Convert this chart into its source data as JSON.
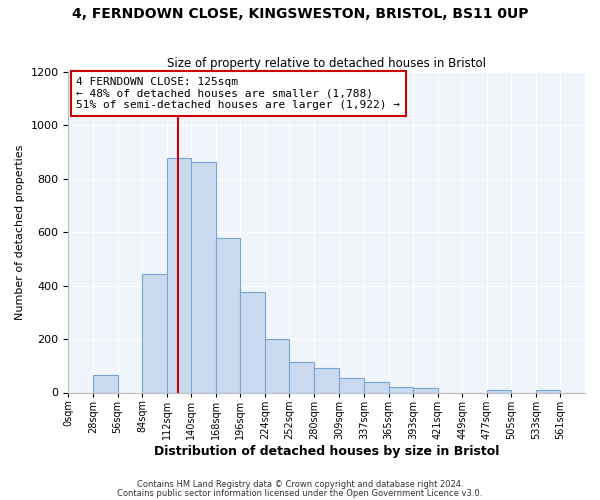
{
  "title1": "4, FERNDOWN CLOSE, KINGSWESTON, BRISTOL, BS11 0UP",
  "title2": "Size of property relative to detached houses in Bristol",
  "xlabel": "Distribution of detached houses by size in Bristol",
  "ylabel": "Number of detached properties",
  "bar_left_edges": [
    0,
    28,
    56,
    84,
    112,
    140,
    168,
    196,
    224,
    252,
    280,
    309,
    337,
    365,
    393,
    421,
    449,
    477,
    505,
    533
  ],
  "bar_widths": [
    28,
    28,
    28,
    28,
    28,
    28,
    28,
    28,
    28,
    28,
    29,
    28,
    28,
    28,
    28,
    28,
    28,
    28,
    28,
    28
  ],
  "bar_heights": [
    0,
    65,
    0,
    445,
    880,
    865,
    580,
    375,
    200,
    115,
    90,
    55,
    40,
    20,
    15,
    0,
    0,
    10,
    0,
    10
  ],
  "bar_color": "#c9d9f0",
  "bar_edge_color": "#7aa4d1",
  "property_line_x": 125,
  "property_line_color": "#cc0000",
  "annotation_title": "4 FERNDOWN CLOSE: 125sqm",
  "annotation_line1": "← 48% of detached houses are smaller (1,788)",
  "annotation_line2": "51% of semi-detached houses are larger (1,922) →",
  "annotation_box_color": "#cc0000",
  "ylim": [
    0,
    1200
  ],
  "yticks": [
    0,
    200,
    400,
    600,
    800,
    1000,
    1200
  ],
  "xtick_labels": [
    "0sqm",
    "28sqm",
    "56sqm",
    "84sqm",
    "112sqm",
    "140sqm",
    "168sqm",
    "196sqm",
    "224sqm",
    "252sqm",
    "280sqm",
    "309sqm",
    "337sqm",
    "365sqm",
    "393sqm",
    "421sqm",
    "449sqm",
    "477sqm",
    "505sqm",
    "533sqm",
    "561sqm"
  ],
  "xtick_positions": [
    0,
    28,
    56,
    84,
    112,
    140,
    168,
    196,
    224,
    252,
    280,
    309,
    337,
    365,
    393,
    421,
    449,
    477,
    505,
    533,
    561
  ],
  "footnote1": "Contains HM Land Registry data © Crown copyright and database right 2024.",
  "footnote2": "Contains public sector information licensed under the Open Government Licence v3.0.",
  "bg_color": "#ffffff",
  "plot_bg_color": "#f0f4fb",
  "title1_fontsize": 10,
  "title2_fontsize": 8.5,
  "xlabel_fontsize": 9,
  "ylabel_fontsize": 8,
  "ytick_fontsize": 8,
  "xtick_fontsize": 7,
  "footnote_fontsize": 6,
  "annotation_fontsize": 8
}
